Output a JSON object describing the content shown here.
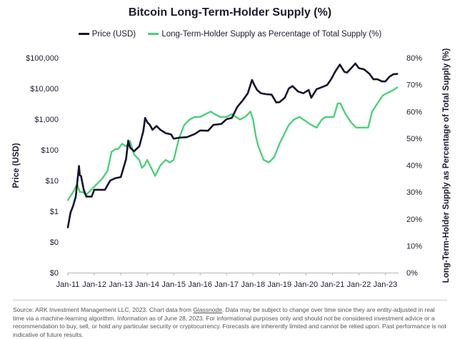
{
  "chart_data": {
    "type": "line",
    "title": "Bitcoin Long-Term-Holder Supply (%)",
    "ylabel": "Price (USD)",
    "y2label": "Long-Term-Holder Supply as Percentage of Total Supply (%)",
    "yscale": "log",
    "yticks": [
      0.01,
      0.1,
      1,
      10,
      100,
      1000,
      10000,
      100000
    ],
    "ytick_labels": [
      "$0",
      "$0",
      "$1",
      "$10",
      "$100",
      "$1,000",
      "$10,000",
      "$100,000"
    ],
    "y2ticks": [
      0,
      10,
      20,
      30,
      40,
      50,
      60,
      70,
      80
    ],
    "y2tick_labels": [
      "0%",
      "10%",
      "20%",
      "30%",
      "40%",
      "50%",
      "60%",
      "70%",
      "80%"
    ],
    "xlim": [
      2011.0,
      2023.5
    ],
    "xticks": [
      2011,
      2012,
      2013,
      2014,
      2015,
      2016,
      2017,
      2018,
      2019,
      2020,
      2021,
      2022,
      2023
    ],
    "xtick_labels": [
      "Jan-11",
      "Jan-12",
      "Jan-13",
      "Jan-14",
      "Jan-15",
      "Jan-16",
      "Jan-17",
      "Jan-18",
      "Jan-19",
      "Jan-20",
      "Jan-21",
      "Jan-22",
      "Jan-23"
    ],
    "legend_position": "top",
    "series": [
      {
        "name": "Price (USD)",
        "axis": "left",
        "color": "#14142b",
        "x": [
          2011.0,
          2011.1,
          2011.2,
          2011.3,
          2011.35,
          2011.42,
          2011.45,
          2011.5,
          2011.6,
          2011.7,
          2011.8,
          2011.9,
          2012.0,
          2012.2,
          2012.4,
          2012.6,
          2012.8,
          2013.0,
          2013.2,
          2013.28,
          2013.35,
          2013.5,
          2013.7,
          2013.85,
          2013.92,
          2014.0,
          2014.1,
          2014.2,
          2014.35,
          2014.5,
          2014.7,
          2014.9,
          2015.0,
          2015.2,
          2015.5,
          2015.8,
          2016.0,
          2016.3,
          2016.5,
          2016.8,
          2017.0,
          2017.2,
          2017.4,
          2017.6,
          2017.8,
          2017.96,
          2018.05,
          2018.15,
          2018.3,
          2018.5,
          2018.7,
          2018.88,
          2019.0,
          2019.2,
          2019.35,
          2019.49,
          2019.7,
          2019.9,
          2020.1,
          2020.2,
          2020.4,
          2020.6,
          2020.8,
          2020.95,
          2021.1,
          2021.28,
          2021.45,
          2021.55,
          2021.7,
          2021.87,
          2022.0,
          2022.2,
          2022.4,
          2022.55,
          2022.7,
          2022.87,
          2023.0,
          2023.15,
          2023.3,
          2023.45
        ],
        "y": [
          0.3,
          0.9,
          1.5,
          3,
          8,
          30,
          15,
          14,
          5,
          3,
          3,
          3,
          5,
          5,
          5,
          10,
          12,
          13,
          50,
          200,
          120,
          90,
          130,
          400,
          1100,
          800,
          650,
          450,
          600,
          450,
          350,
          320,
          230,
          250,
          260,
          330,
          430,
          420,
          650,
          700,
          1000,
          1100,
          2500,
          4000,
          7000,
          19000,
          13000,
          9000,
          7000,
          6500,
          6300,
          3500,
          3600,
          5000,
          10000,
          12000,
          8000,
          7000,
          9000,
          5000,
          9500,
          11000,
          13000,
          20000,
          35000,
          60000,
          35000,
          33000,
          45000,
          65000,
          46000,
          42000,
          30000,
          20000,
          20000,
          17000,
          17000,
          24000,
          29000,
          30000
        ]
      },
      {
        "name": "Long-Term-Holder Supply as Percentage of Total Supply (%)",
        "axis": "right",
        "color": "#4cd07a",
        "x": [
          2011.0,
          2011.2,
          2011.35,
          2011.45,
          2011.55,
          2011.7,
          2011.9,
          2012.1,
          2012.3,
          2012.5,
          2012.65,
          2012.8,
          2012.9,
          2013.05,
          2013.2,
          2013.35,
          2013.5,
          2013.7,
          2013.8,
          2013.9,
          2014.0,
          2014.2,
          2014.3,
          2014.5,
          2014.7,
          2014.85,
          2015.0,
          2015.2,
          2015.4,
          2015.6,
          2015.8,
          2016.0,
          2016.2,
          2016.4,
          2016.55,
          2016.75,
          2017.0,
          2017.2,
          2017.5,
          2017.7,
          2017.9,
          2018.0,
          2018.1,
          2018.2,
          2018.4,
          2018.6,
          2018.8,
          2019.0,
          2019.2,
          2019.35,
          2019.55,
          2019.75,
          2019.9,
          2020.05,
          2020.2,
          2020.4,
          2020.6,
          2020.75,
          2020.9,
          2021.05,
          2021.2,
          2021.3,
          2021.5,
          2021.7,
          2021.9,
          2022.0,
          2022.1,
          2022.2,
          2022.35,
          2022.5,
          2022.7,
          2022.9,
          2023.1,
          2023.3,
          2023.45
        ],
        "y": [
          27,
          30,
          33,
          30,
          30,
          29,
          31,
          33,
          35,
          38,
          45,
          46,
          46,
          48,
          47,
          49,
          44,
          42,
          39,
          40,
          42,
          38,
          36,
          40,
          42,
          41,
          42,
          50,
          55,
          57,
          58,
          58,
          59,
          60,
          59,
          58,
          58,
          59,
          57,
          58,
          60,
          57,
          51,
          47,
          42,
          41,
          43,
          48,
          52,
          55,
          57,
          58,
          57,
          56,
          55,
          54,
          57,
          58,
          58,
          58,
          63,
          63,
          59,
          56,
          54,
          54,
          54,
          54,
          54,
          60,
          63,
          66,
          67,
          68,
          69
        ]
      }
    ]
  },
  "source_text": {
    "prefix": "Source: ARK Investment Management LLC, 2023. Chart data from ",
    "link": "Glassnode",
    "suffix": ". Data may be subject to change over time since they are entity-adjusted in real time via a machine-learning algorithm. Information as of June 28, 2023. For informational purposes only and should not be considered investment advice or a recommendation to buy, sell, or hold any particular security or cryptocurrency. Forecasts are inherently limited and cannot be relied upon. Past performance is not indicative of future results."
  }
}
